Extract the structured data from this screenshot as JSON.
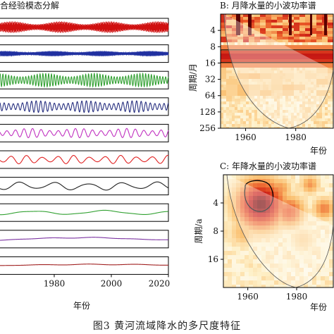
{
  "figure": {
    "caption": "图3    黄河流域降水的多尺度特征"
  },
  "chart_data": [
    {
      "type": "line",
      "panel_title": "合经验模态分解",
      "xlabel": "年份",
      "xlim": [
        1961,
        2020
      ],
      "xticks": [
        1980,
        2000,
        2020
      ],
      "series": [
        {
          "color": "#d01010",
          "period_years": 0.17,
          "amplitude": 0.75
        },
        {
          "color": "#2030a0",
          "period_years": 0.3,
          "amplitude": 0.35
        },
        {
          "color": "#30a030",
          "period_years": 1.0,
          "amplitude": 0.85
        },
        {
          "color": "#283080",
          "period_years": 1.6,
          "amplitude": 0.75
        },
        {
          "color": "#c030c0",
          "period_years": 3.0,
          "amplitude": 0.6
        },
        {
          "color": "#e02020",
          "period_years": 5.5,
          "amplitude": 0.55
        },
        {
          "color": "#202020",
          "period_years": 12.0,
          "amplitude": 0.55
        },
        {
          "color": "#30a030",
          "period_years": 25.0,
          "amplitude": 0.3
        },
        {
          "color": "#7a30a0",
          "period_years": 80.0,
          "amplitude": 0.25
        },
        {
          "color": "#a02020",
          "period_years": 140.0,
          "amplitude": 0.2
        }
      ]
    },
    {
      "type": "heatmap",
      "panel_title": "B: 月降水量的小波功率谱",
      "xlabel": "年份",
      "ylabel": "周期/月",
      "xticks": [
        1960,
        1980
      ],
      "yticks": [
        "4",
        "8",
        "16",
        "32",
        "64",
        "128",
        "256"
      ],
      "dominant_period": "12"
    },
    {
      "type": "heatmap",
      "panel_title": "C: 年降水量的小波功率谱",
      "xlabel": "年份",
      "ylabel": "周期/a",
      "xticks": [
        1960,
        1980
      ],
      "yticks": [
        "4",
        "8",
        "16"
      ],
      "significant_region": {
        "period": "4",
        "years": [
          1960,
          1970
        ]
      }
    }
  ]
}
